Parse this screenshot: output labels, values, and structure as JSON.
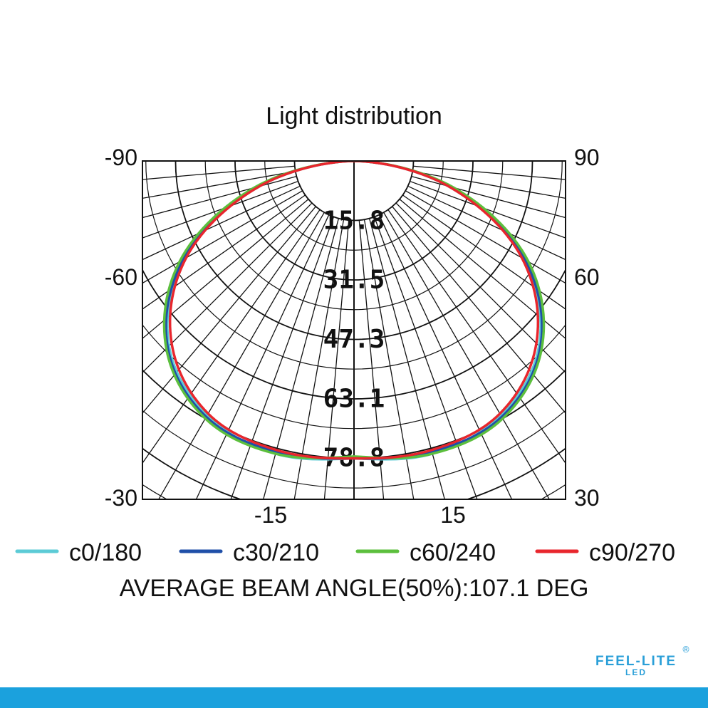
{
  "chart_data": {
    "type": "polar",
    "title": "Light distribution",
    "ring_values": [
      15.8,
      31.5,
      47.3,
      63.1,
      78.8
    ],
    "ring_labels": [
      "15.8",
      "31.5",
      "47.3",
      "63.1",
      "78.8"
    ],
    "rmax": 94.6,
    "angle_labels_left": [
      "-90",
      "-60",
      "-30"
    ],
    "angle_labels_right": [
      "90",
      "60",
      "30"
    ],
    "bottom_labels": [
      "-15",
      "15"
    ],
    "series": [
      {
        "name": "c0/180",
        "color": "#5ccbd6",
        "angles_deg": [
          0,
          15,
          30,
          45,
          60,
          75,
          90
        ],
        "values": [
          79,
          80.5,
          78,
          69.5,
          52,
          26,
          0
        ]
      },
      {
        "name": "c30/210",
        "color": "#1f4fa8",
        "angles_deg": [
          0,
          15,
          30,
          45,
          60,
          75,
          90
        ],
        "values": [
          79,
          80,
          78.5,
          70,
          52.5,
          27,
          0
        ]
      },
      {
        "name": "c60/240",
        "color": "#5cbf3d",
        "angles_deg": [
          0,
          15,
          30,
          45,
          60,
          75,
          90
        ],
        "values": [
          78.5,
          80.5,
          79,
          70.5,
          53.5,
          27.5,
          0
        ]
      },
      {
        "name": "c90/270",
        "color": "#e8262d",
        "angles_deg": [
          0,
          15,
          30,
          45,
          60,
          75,
          90
        ],
        "values": [
          79,
          79.5,
          77.5,
          68.5,
          51.5,
          26,
          0
        ]
      }
    ],
    "beam_angle_text": "AVERAGE BEAM ANGLE(50%):107.1  DEG"
  },
  "logo": {
    "main": "FEEL-LITE",
    "sub": "LED",
    "mark": "®",
    "color": "#2a9fd8"
  },
  "footer": {
    "color": "#1ba1dd"
  }
}
